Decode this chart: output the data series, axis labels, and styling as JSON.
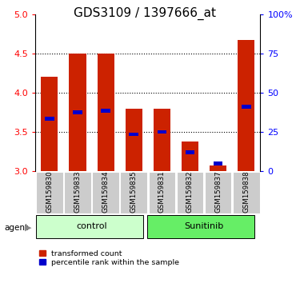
{
  "title": "GDS3109 / 1397666_at",
  "categories": [
    "GSM159830",
    "GSM159833",
    "GSM159834",
    "GSM159835",
    "GSM159831",
    "GSM159832",
    "GSM159837",
    "GSM159838"
  ],
  "red_values": [
    4.2,
    4.5,
    4.5,
    3.8,
    3.8,
    3.38,
    3.07,
    4.67
  ],
  "blue_values": [
    3.67,
    3.75,
    3.77,
    3.47,
    3.5,
    3.24,
    3.1,
    3.82
  ],
  "y_min": 3.0,
  "y_max": 5.0,
  "y_ticks": [
    3.0,
    3.5,
    4.0,
    4.5,
    5.0
  ],
  "right_y_ticks": [
    0,
    25,
    50,
    75,
    100
  ],
  "right_y_labels": [
    "0",
    "25",
    "50",
    "75",
    "100%"
  ],
  "control_label": "control",
  "sunitinib_label": "Sunitinib",
  "agent_label": "agent",
  "legend_red": "transformed count",
  "legend_blue": "percentile rank within the sample",
  "bar_color": "#cc2200",
  "blue_color": "#0000cc",
  "control_bg": "#ccffcc",
  "sunitinib_bg": "#66ee66",
  "tick_bg": "#cccccc",
  "bar_width": 0.6,
  "title_fontsize": 11,
  "axis_fontsize": 8,
  "label_fontsize": 7
}
